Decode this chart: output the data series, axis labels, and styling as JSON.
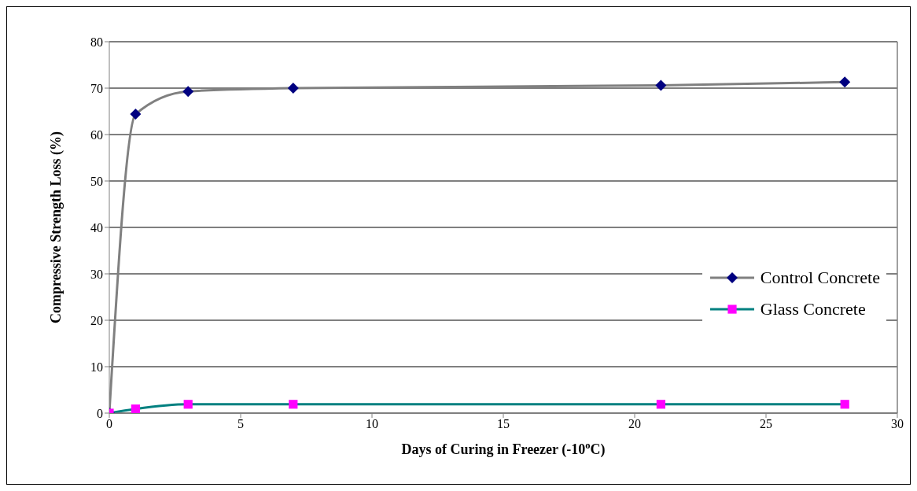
{
  "chart_data": {
    "type": "line",
    "xlabel": "Days of Curing in Freezer (-10$^{o}$C)",
    "ylabel": "Compressive Strength Loss (%)",
    "x": [
      0,
      1,
      3,
      7,
      21,
      28
    ],
    "series": [
      {
        "name": "Control Concrete",
        "color": "#808080",
        "colors": [
          "#000080",
          "#000080",
          "#000080",
          "#000080",
          "#000080",
          "#000080"
        ],
        "marker": "diamond",
        "values": [
          0,
          64.4,
          69.3,
          70,
          70.6,
          71.3
        ]
      },
      {
        "name": "Glass Concrete",
        "color": "#008080",
        "colors": [
          "#ff00ff",
          "#ff00ff",
          "#ff00ff",
          "#ff00ff",
          "#ff00ff",
          "#ff00ff"
        ],
        "marker": "square",
        "values": [
          0,
          0.9,
          1.9,
          1.9,
          1.9,
          1.9
        ]
      }
    ],
    "xlim": [
      0,
      30
    ],
    "xticks": [
      0,
      5,
      10,
      15,
      20,
      25,
      30
    ],
    "ylim": [
      0,
      80
    ],
    "yticks": [
      0,
      10,
      20,
      30,
      40,
      50,
      60,
      70,
      80
    ],
    "grid": "y",
    "legend": "right"
  }
}
